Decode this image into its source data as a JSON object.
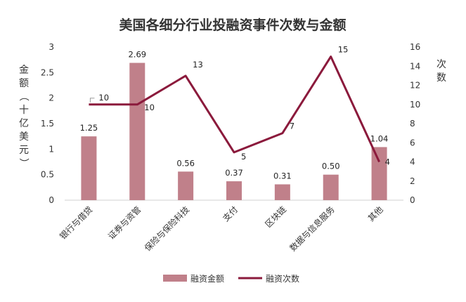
{
  "chart_data": {
    "type": "bar",
    "title": "美国各细分行业投融资事件次数与金额",
    "categories": [
      "银行与借贷",
      "证券与资管",
      "保险与保险科技",
      "支付",
      "区块链",
      "数据与信息服务",
      "其他"
    ],
    "series": [
      {
        "name": "融资金额",
        "type": "bar",
        "axis": "left",
        "color": "#c0808a",
        "values": [
          1.25,
          2.69,
          0.56,
          0.37,
          0.31,
          0.5,
          1.04
        ],
        "labels": [
          "1.25",
          "2.69",
          "0.56",
          "0.37",
          "0.31",
          "0.50",
          "1.04"
        ]
      },
      {
        "name": "融资次数",
        "type": "line",
        "axis": "right",
        "color": "#8b1a3c",
        "values": [
          10,
          10,
          13,
          5,
          7,
          15,
          4
        ],
        "labels": [
          "10",
          "10",
          "13",
          "5",
          "7",
          "15",
          "4"
        ]
      }
    ],
    "y_left": {
      "label": "金额（十亿美元）",
      "min": 0,
      "max": 3,
      "ticks": [
        "0",
        "0.5",
        "1",
        "1.5",
        "2",
        "2.5",
        "3"
      ]
    },
    "y_right": {
      "label": "次数",
      "min": 0,
      "max": 16,
      "ticks": [
        "0",
        "2",
        "4",
        "6",
        "8",
        "10",
        "12",
        "14",
        "16"
      ]
    },
    "grid": false,
    "legend": "bottom"
  }
}
